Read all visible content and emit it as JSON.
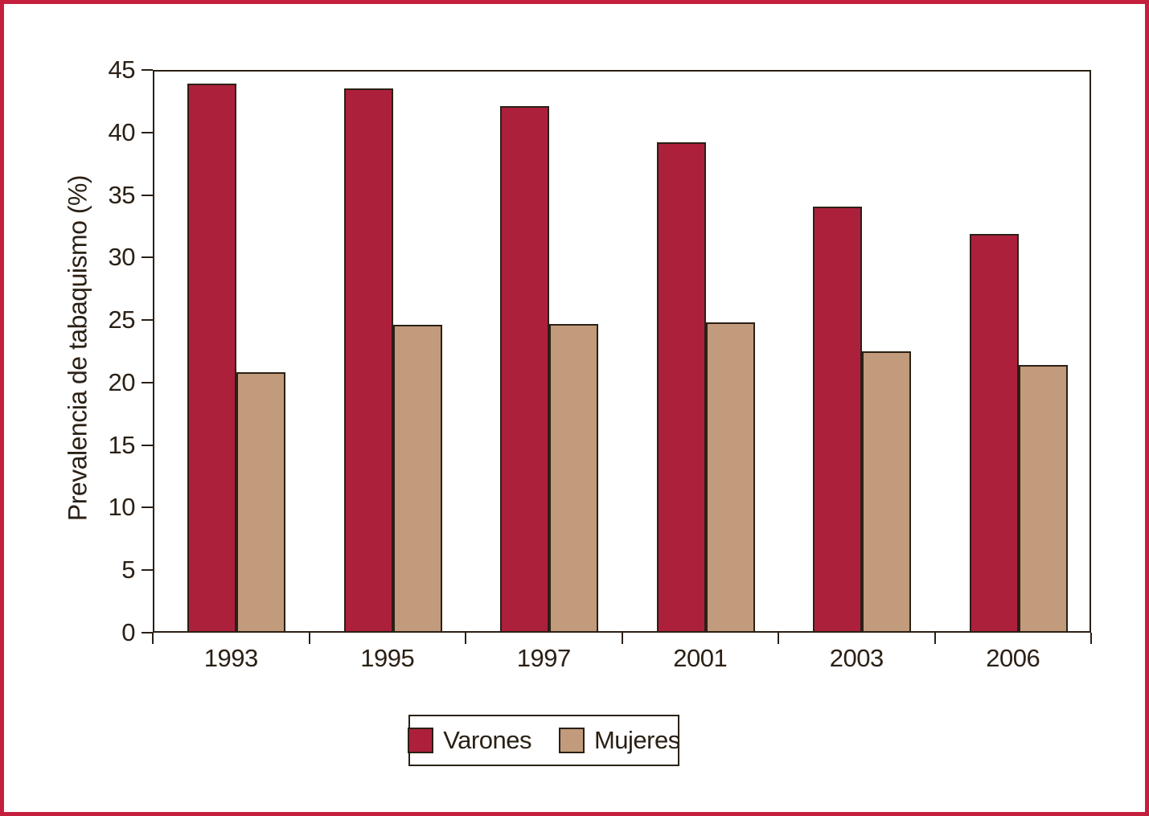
{
  "figure": {
    "frame_color": "#c4203e",
    "background_color": "#ffffff",
    "axis_color": "#2b2015"
  },
  "chart_data": {
    "type": "bar",
    "title": "",
    "xlabel": "",
    "ylabel": "Prevalencia de tabaquismo (%)",
    "ylim": [
      0,
      45
    ],
    "y_ticks": [
      0,
      5,
      10,
      15,
      20,
      25,
      30,
      35,
      40,
      45
    ],
    "grid": false,
    "legend_position": "bottom-center",
    "categories": [
      "1993",
      "1995",
      "1997",
      "2001",
      "2003",
      "2006"
    ],
    "series": [
      {
        "name": "Varones",
        "color": "#ad203c",
        "values": [
          43.9,
          43.5,
          42.1,
          39.2,
          34.1,
          31.9
        ]
      },
      {
        "name": "Mujeres",
        "color": "#c19b7b",
        "values": [
          20.8,
          24.6,
          24.7,
          24.8,
          22.5,
          21.4
        ]
      }
    ]
  }
}
